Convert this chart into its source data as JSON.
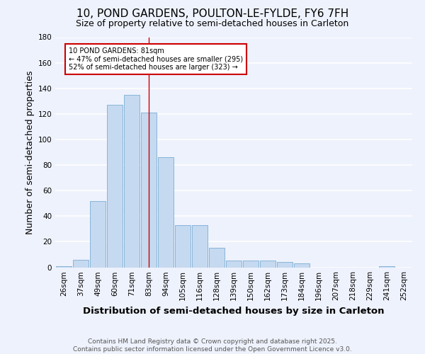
{
  "title": "10, POND GARDENS, POULTON-LE-FYLDE, FY6 7FH",
  "subtitle": "Size of property relative to semi-detached houses in Carleton",
  "xlabel": "Distribution of semi-detached houses by size in Carleton",
  "ylabel": "Number of semi-detached properties",
  "categories": [
    "26sqm",
    "37sqm",
    "49sqm",
    "60sqm",
    "71sqm",
    "83sqm",
    "94sqm",
    "105sqm",
    "116sqm",
    "128sqm",
    "139sqm",
    "150sqm",
    "162sqm",
    "173sqm",
    "184sqm",
    "196sqm",
    "207sqm",
    "218sqm",
    "229sqm",
    "241sqm",
    "252sqm"
  ],
  "values": [
    1,
    6,
    52,
    127,
    135,
    121,
    86,
    33,
    33,
    15,
    5,
    5,
    5,
    4,
    3,
    0,
    0,
    0,
    0,
    1,
    0
  ],
  "bar_color": "#c5d9f0",
  "bar_edge_color": "#7aadd4",
  "annotation_line_bin": 5,
  "annotation_text_line1": "10 POND GARDENS: 81sqm",
  "annotation_text_line2": "← 47% of semi-detached houses are smaller (295)",
  "annotation_text_line3": "52% of semi-detached houses are larger (323) →",
  "annotation_box_color": "#ffffff",
  "annotation_box_edge": "#cc0000",
  "vline_color": "#cc0000",
  "ylim": [
    0,
    180
  ],
  "yticks": [
    0,
    20,
    40,
    60,
    80,
    100,
    120,
    140,
    160,
    180
  ],
  "footer_line1": "Contains HM Land Registry data © Crown copyright and database right 2025.",
  "footer_line2": "Contains public sector information licensed under the Open Government Licence v3.0.",
  "background_color": "#eef2fc",
  "grid_color": "#ffffff",
  "title_fontsize": 11,
  "subtitle_fontsize": 9,
  "axis_label_fontsize": 9,
  "tick_fontsize": 7.5,
  "footer_fontsize": 6.5
}
